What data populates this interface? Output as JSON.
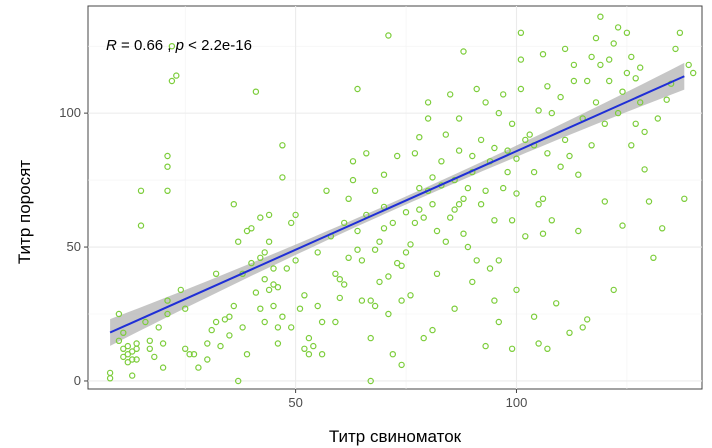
{
  "chart_data": {
    "type": "scatter",
    "xlabel": "Титр свиноматок",
    "ylabel": "Титр поросят",
    "annotation": {
      "r_label": "R",
      "r_text": " = 0.66 , ",
      "p_label": "p",
      "p_text": " < 2.2e-16"
    },
    "xlim": [
      3,
      142
    ],
    "ylim": [
      -3,
      140
    ],
    "x_ticks": [
      {
        "value": 50,
        "label": "50"
      },
      {
        "value": 100,
        "label": "100"
      }
    ],
    "y_ticks": [
      {
        "value": 0,
        "label": "0"
      },
      {
        "value": 50,
        "label": "50"
      },
      {
        "value": 100,
        "label": "100"
      }
    ],
    "grid": true,
    "point_color": "#7ccd3a",
    "line_color": "#1f2fd6",
    "band_color": "#b3b3b3",
    "regression": {
      "x_start": 8,
      "x_end": 138,
      "intercept": 12.2,
      "slope": 0.736,
      "band_min": 1.5,
      "band_max": 5.0
    },
    "points": [
      [
        8,
        1
      ],
      [
        8,
        3
      ],
      [
        10,
        15
      ],
      [
        10,
        25
      ],
      [
        11,
        9
      ],
      [
        11,
        12
      ],
      [
        11,
        18
      ],
      [
        12,
        7
      ],
      [
        12,
        10
      ],
      [
        12,
        13
      ],
      [
        13,
        2
      ],
      [
        13,
        8
      ],
      [
        13,
        11
      ],
      [
        14,
        12
      ],
      [
        14,
        14
      ],
      [
        14,
        8
      ],
      [
        15,
        71
      ],
      [
        15,
        58
      ],
      [
        16,
        22
      ],
      [
        17,
        12
      ],
      [
        17,
        15
      ],
      [
        18,
        9
      ],
      [
        19,
        20
      ],
      [
        20,
        5
      ],
      [
        20,
        14
      ],
      [
        21,
        25
      ],
      [
        21,
        30
      ],
      [
        21,
        84
      ],
      [
        21,
        71
      ],
      [
        21,
        80
      ],
      [
        22,
        112
      ],
      [
        22,
        125
      ],
      [
        23,
        114
      ],
      [
        24,
        34
      ],
      [
        25,
        27
      ],
      [
        25,
        12
      ],
      [
        26,
        10
      ],
      [
        27,
        10
      ],
      [
        28,
        5
      ],
      [
        30,
        8
      ],
      [
        30,
        14
      ],
      [
        31,
        19
      ],
      [
        32,
        22
      ],
      [
        32,
        40
      ],
      [
        33,
        13
      ],
      [
        34,
        23
      ],
      [
        35,
        17
      ],
      [
        35,
        24
      ],
      [
        36,
        28
      ],
      [
        36,
        66
      ],
      [
        37,
        0
      ],
      [
        37,
        52
      ],
      [
        38,
        20
      ],
      [
        38,
        40
      ],
      [
        39,
        10
      ],
      [
        39,
        56
      ],
      [
        40,
        44
      ],
      [
        40,
        57
      ],
      [
        41,
        33
      ],
      [
        41,
        108
      ],
      [
        42,
        27
      ],
      [
        42,
        46
      ],
      [
        42,
        61
      ],
      [
        43,
        22
      ],
      [
        43,
        38
      ],
      [
        43,
        48
      ],
      [
        44,
        34
      ],
      [
        44,
        52
      ],
      [
        44,
        62
      ],
      [
        45,
        28
      ],
      [
        45,
        42
      ],
      [
        45,
        36
      ],
      [
        46,
        14
      ],
      [
        46,
        20
      ],
      [
        46,
        35
      ],
      [
        47,
        24
      ],
      [
        47,
        76
      ],
      [
        47,
        88
      ],
      [
        48,
        42
      ],
      [
        49,
        20
      ],
      [
        49,
        59
      ],
      [
        50,
        45
      ],
      [
        50,
        62
      ],
      [
        51,
        27
      ],
      [
        52,
        12
      ],
      [
        52,
        32
      ],
      [
        53,
        10
      ],
      [
        53,
        16
      ],
      [
        54,
        13
      ],
      [
        55,
        28
      ],
      [
        55,
        48
      ],
      [
        56,
        10
      ],
      [
        56,
        22
      ],
      [
        57,
        71
      ],
      [
        58,
        54
      ],
      [
        59,
        22
      ],
      [
        59,
        40
      ],
      [
        60,
        31
      ],
      [
        60,
        38
      ],
      [
        61,
        36
      ],
      [
        61,
        59
      ],
      [
        62,
        46
      ],
      [
        62,
        68
      ],
      [
        63,
        75
      ],
      [
        63,
        82
      ],
      [
        64,
        49
      ],
      [
        64,
        56
      ],
      [
        64,
        109
      ],
      [
        65,
        30
      ],
      [
        65,
        45
      ],
      [
        66,
        62
      ],
      [
        66,
        85
      ],
      [
        67,
        0
      ],
      [
        67,
        16
      ],
      [
        67,
        30
      ],
      [
        68,
        28
      ],
      [
        68,
        71
      ],
      [
        68,
        49
      ],
      [
        69,
        37
      ],
      [
        69,
        52
      ],
      [
        70,
        57
      ],
      [
        70,
        65
      ],
      [
        70,
        77
      ],
      [
        71,
        25
      ],
      [
        71,
        39
      ],
      [
        71,
        129
      ],
      [
        72,
        10
      ],
      [
        72,
        59
      ],
      [
        73,
        44
      ],
      [
        73,
        84
      ],
      [
        74,
        6
      ],
      [
        74,
        30
      ],
      [
        74,
        43
      ],
      [
        75,
        63
      ],
      [
        75,
        48
      ],
      [
        76,
        51
      ],
      [
        76,
        32
      ],
      [
        77,
        59
      ],
      [
        77,
        85
      ],
      [
        78,
        64
      ],
      [
        78,
        72
      ],
      [
        78,
        91
      ],
      [
        79,
        16
      ],
      [
        79,
        61
      ],
      [
        80,
        71
      ],
      [
        80,
        98
      ],
      [
        80,
        104
      ],
      [
        81,
        19
      ],
      [
        81,
        66
      ],
      [
        81,
        76
      ],
      [
        82,
        40
      ],
      [
        82,
        56
      ],
      [
        83,
        73
      ],
      [
        83,
        82
      ],
      [
        84,
        52
      ],
      [
        84,
        92
      ],
      [
        85,
        61
      ],
      [
        85,
        107
      ],
      [
        86,
        27
      ],
      [
        86,
        64
      ],
      [
        86,
        75
      ],
      [
        87,
        66
      ],
      [
        87,
        86
      ],
      [
        87,
        98
      ],
      [
        88,
        55
      ],
      [
        88,
        68
      ],
      [
        88,
        123
      ],
      [
        89,
        50
      ],
      [
        89,
        72
      ],
      [
        90,
        37
      ],
      [
        90,
        78
      ],
      [
        90,
        84
      ],
      [
        91,
        45
      ],
      [
        91,
        109
      ],
      [
        92,
        66
      ],
      [
        92,
        90
      ],
      [
        93,
        13
      ],
      [
        93,
        71
      ],
      [
        93,
        104
      ],
      [
        94,
        42
      ],
      [
        94,
        82
      ],
      [
        95,
        30
      ],
      [
        95,
        60
      ],
      [
        95,
        87
      ],
      [
        96,
        22
      ],
      [
        96,
        45
      ],
      [
        96,
        100
      ],
      [
        97,
        72
      ],
      [
        97,
        107
      ],
      [
        98,
        78
      ],
      [
        98,
        86
      ],
      [
        99,
        12
      ],
      [
        99,
        60
      ],
      [
        99,
        96
      ],
      [
        100,
        34
      ],
      [
        100,
        70
      ],
      [
        100,
        83
      ],
      [
        101,
        109
      ],
      [
        101,
        120
      ],
      [
        101,
        130
      ],
      [
        102,
        54
      ],
      [
        102,
        90
      ],
      [
        103,
        92
      ],
      [
        104,
        24
      ],
      [
        104,
        78
      ],
      [
        104,
        88
      ],
      [
        105,
        14
      ],
      [
        105,
        66
      ],
      [
        105,
        101
      ],
      [
        106,
        68
      ],
      [
        106,
        55
      ],
      [
        106,
        122
      ],
      [
        107,
        12
      ],
      [
        107,
        85
      ],
      [
        107,
        110
      ],
      [
        108,
        60
      ],
      [
        108,
        100
      ],
      [
        109,
        29
      ],
      [
        110,
        80
      ],
      [
        110,
        106
      ],
      [
        111,
        90
      ],
      [
        111,
        124
      ],
      [
        112,
        18
      ],
      [
        112,
        84
      ],
      [
        113,
        112
      ],
      [
        113,
        118
      ],
      [
        114,
        56
      ],
      [
        114,
        77
      ],
      [
        115,
        20
      ],
      [
        115,
        98
      ],
      [
        116,
        23
      ],
      [
        116,
        112
      ],
      [
        117,
        88
      ],
      [
        117,
        121
      ],
      [
        118,
        104
      ],
      [
        118,
        128
      ],
      [
        119,
        118
      ],
      [
        119,
        136
      ],
      [
        120,
        67
      ],
      [
        120,
        96
      ],
      [
        121,
        112
      ],
      [
        121,
        120
      ],
      [
        122,
        34
      ],
      [
        122,
        126
      ],
      [
        123,
        100
      ],
      [
        123,
        132
      ],
      [
        124,
        58
      ],
      [
        124,
        108
      ],
      [
        125,
        115
      ],
      [
        125,
        130
      ],
      [
        126,
        88
      ],
      [
        126,
        121
      ],
      [
        127,
        96
      ],
      [
        127,
        113
      ],
      [
        128,
        104
      ],
      [
        128,
        117
      ],
      [
        129,
        79
      ],
      [
        129,
        93
      ],
      [
        130,
        67
      ],
      [
        131,
        46
      ],
      [
        132,
        98
      ],
      [
        133,
        57
      ],
      [
        134,
        105
      ],
      [
        135,
        111
      ],
      [
        136,
        124
      ],
      [
        137,
        130
      ],
      [
        138,
        68
      ],
      [
        139,
        118
      ],
      [
        140,
        115
      ]
    ]
  }
}
